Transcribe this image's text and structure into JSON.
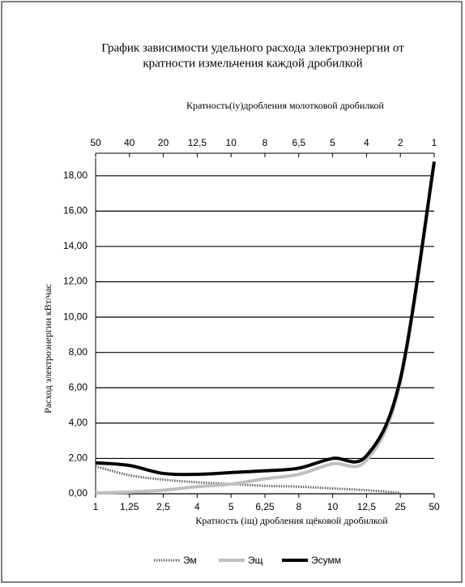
{
  "chart_data": {
    "type": "line",
    "title": [
      "График зависимости удельного расхода  электроэнергии от",
      "кратности измельчения каждой дробилкой"
    ],
    "x2_label": "Кратность(iу)дробления молотковой дробилкой",
    "x_label": "Кратность (iщ) дробления щёковой дробилкой",
    "y_label": "Расход электроэнергии кВт/час",
    "categories": [
      "1",
      "1,25",
      "2,5",
      "4",
      "5",
      "6,25",
      "8",
      "10",
      "12,5",
      "25",
      "50"
    ],
    "x2_categories": [
      "50",
      "40",
      "20",
      "12,5",
      "10",
      "8",
      "6,5",
      "5",
      "4",
      "2",
      "1"
    ],
    "ylim": [
      0,
      19
    ],
    "yticks": [
      {
        "value": 0,
        "label": "0,00"
      },
      {
        "value": 2,
        "label": "2,00"
      },
      {
        "value": 4,
        "label": "4,00"
      },
      {
        "value": 6,
        "label": "6,00"
      },
      {
        "value": 8,
        "label": "8,00"
      },
      {
        "value": 10,
        "label": "10,00"
      },
      {
        "value": 12,
        "label": "12,00"
      },
      {
        "value": 14,
        "label": "14,00"
      },
      {
        "value": 16,
        "label": "16,00"
      },
      {
        "value": 18,
        "label": "18,00"
      }
    ],
    "grid": true,
    "legend": "bottom",
    "series": [
      {
        "name": "Эм",
        "color": "#666666",
        "style": "dotted",
        "values": [
          1.55,
          1.05,
          0.8,
          0.65,
          0.55,
          0.45,
          0.4,
          0.3,
          0.2,
          0.05,
          null
        ]
      },
      {
        "name": "Эщ",
        "color": "#bfbfbf",
        "style": "solid",
        "values": [
          0.05,
          0.1,
          0.2,
          0.4,
          0.55,
          0.85,
          1.1,
          1.7,
          1.9,
          6.3,
          18.7
        ]
      },
      {
        "name": "Эсумм",
        "color": "#000000",
        "style": "solid",
        "values": [
          1.75,
          1.6,
          1.15,
          1.1,
          1.2,
          1.3,
          1.45,
          2.0,
          2.15,
          6.5,
          18.8
        ]
      }
    ]
  }
}
